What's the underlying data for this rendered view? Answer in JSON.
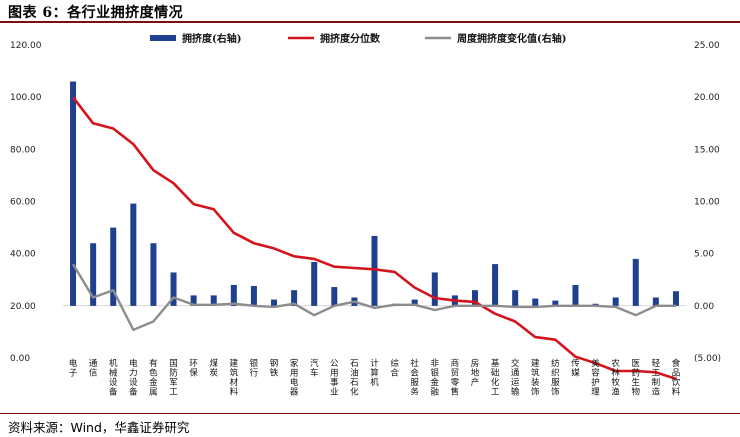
{
  "header": {
    "title": "图表 6：各行业拥挤度情况"
  },
  "footer": {
    "source": "资料来源：Wind，华鑫证券研究"
  },
  "chart_data": {
    "type": "bar+line",
    "categories": [
      "电子",
      "通信",
      "机械设备",
      "电力设备",
      "有色金属",
      "国防军工",
      "环保",
      "煤炭",
      "建筑材料",
      "银行",
      "钢铁",
      "家用电器",
      "汽车",
      "公用事业",
      "石油石化",
      "计算机",
      "综合",
      "社会服务",
      "非银金融",
      "商贸零售",
      "房地产",
      "基础化工",
      "交通运输",
      "建筑装饰",
      "纺织服饰",
      "传媒",
      "美容护理",
      "农林牧渔",
      "医药生物",
      "轻工制造",
      "食品饮料"
    ],
    "left_axis": {
      "min": 0,
      "max": 120,
      "step": 20,
      "tick_labels": [
        "0.00",
        "20.00",
        "40.00",
        "60.00",
        "80.00",
        "100.00",
        "120.00"
      ]
    },
    "right_axis": {
      "min": -5,
      "max": 25,
      "step": 5,
      "tick_labels": [
        "(5.00)",
        "0.00",
        "5.00",
        "10.00",
        "15.00",
        "20.00",
        "25.00"
      ]
    },
    "series": [
      {
        "name": "拥挤度(右轴)",
        "type": "bar",
        "axis": "right",
        "color": "#1f3f8f",
        "values": [
          21.5,
          6.0,
          7.5,
          9.8,
          6.0,
          3.2,
          1.0,
          1.0,
          2.0,
          1.9,
          0.6,
          1.5,
          4.2,
          1.8,
          0.8,
          6.7,
          0.2,
          0.6,
          3.2,
          1.0,
          1.5,
          4.0,
          1.5,
          0.7,
          0.5,
          2.0,
          0.2,
          0.8,
          4.5,
          0.8,
          1.4
        ]
      },
      {
        "name": "拥挤度分位数",
        "type": "line",
        "axis": "left",
        "color": "#d4141c",
        "values": [
          100.0,
          90.0,
          88.0,
          82.0,
          72.0,
          67.0,
          59.0,
          57.0,
          48.0,
          44.0,
          42.0,
          39.0,
          38.0,
          35.0,
          34.5,
          34.0,
          33.0,
          27.0,
          23.0,
          22.0,
          21.5,
          17.0,
          14.0,
          8.0,
          7.0,
          0.5,
          -2.0,
          -5.0,
          -5.0,
          -5.5,
          -8.0
        ]
      },
      {
        "name": "周度拥挤度变化值(右轴)",
        "type": "line",
        "axis": "right",
        "color": "#8c8c8c",
        "values": [
          4.0,
          0.8,
          1.5,
          -2.3,
          -1.5,
          0.8,
          0.1,
          0.1,
          0.2,
          0.0,
          -0.1,
          0.2,
          -0.9,
          0.0,
          0.4,
          -0.2,
          0.1,
          0.1,
          -0.4,
          0.0,
          0.0,
          0.0,
          -0.1,
          -0.1,
          0.0,
          0.0,
          0.0,
          -0.1,
          -0.9,
          0.0,
          0.0
        ]
      }
    ]
  }
}
